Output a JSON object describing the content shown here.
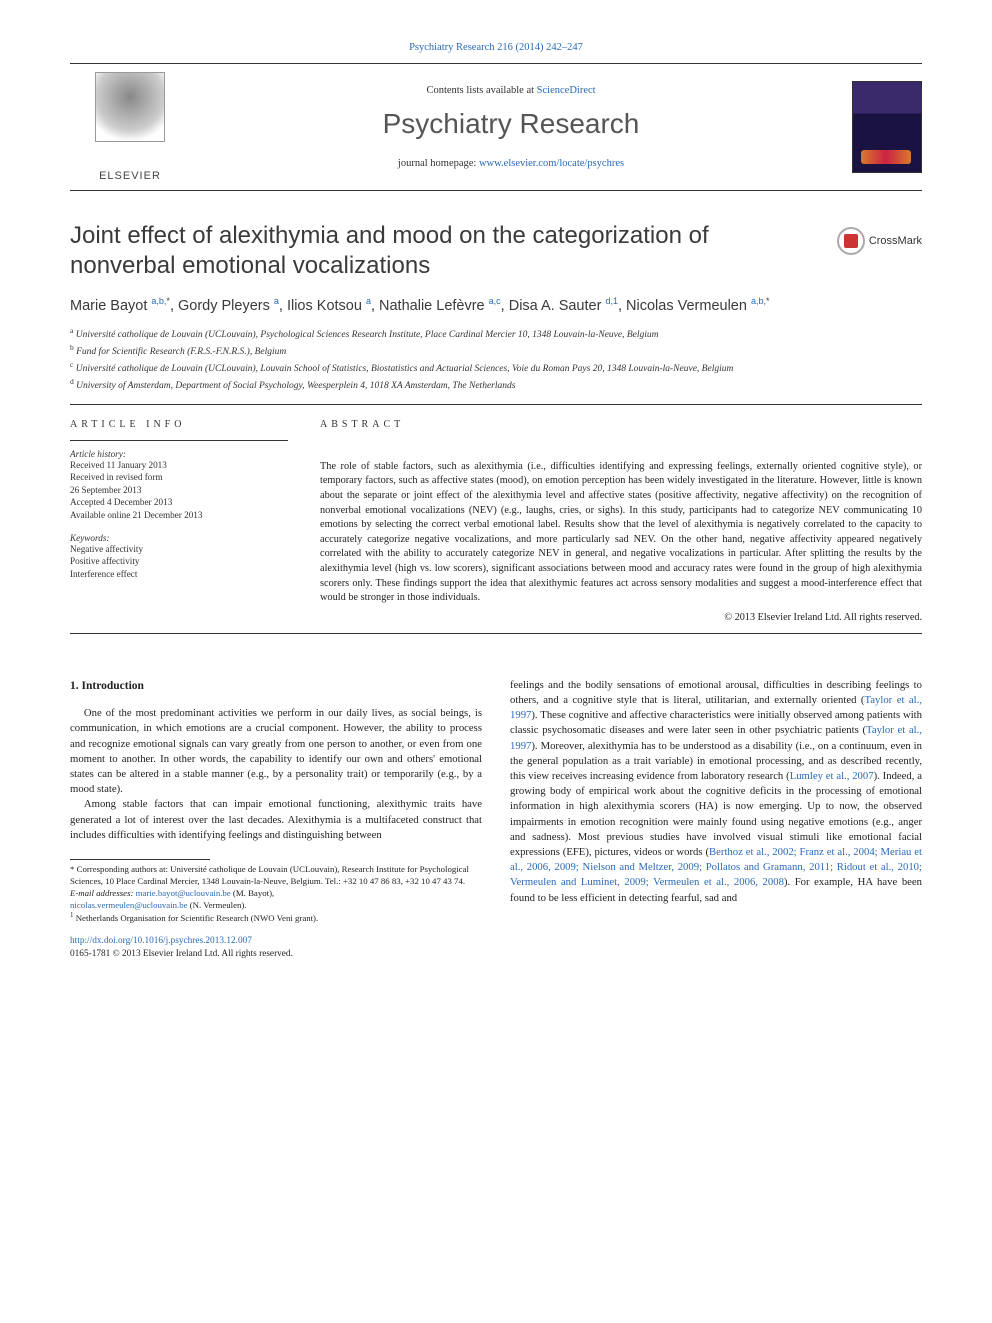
{
  "header_ref": {
    "text": "Psychiatry Research 216 (2014) 242–247",
    "color": "#2a6ab5"
  },
  "masthead": {
    "contents_prefix": "Contents lists available at ",
    "contents_link": "ScienceDirect",
    "journal_name": "Psychiatry Research",
    "homepage_prefix": "journal homepage: ",
    "homepage_link": "www.elsevier.com/locate/psychres",
    "publisher_wordmark": "ELSEVIER"
  },
  "crossmark_label": "CrossMark",
  "title": "Joint effect of alexithymia and mood on the categorization of nonverbal emotional vocalizations",
  "authors_html": "Marie Bayot <span class='sup'>a,b,</span><span class='supstar'>*</span>, Gordy Pleyers <span class='sup'>a</span>, Ilios Kotsou <span class='sup'>a</span>, Nathalie Lefèvre <span class='sup'>a,c</span>, Disa A. Sauter <span class='sup'>d,1</span>, Nicolas Vermeulen <span class='sup'>a,b,</span><span class='supstar'>*</span>",
  "affiliations": [
    {
      "sup": "a",
      "text": "Université catholique de Louvain (UCLouvain), Psychological Sciences Research Institute, Place Cardinal Mercier 10, 1348 Louvain-la-Neuve, Belgium"
    },
    {
      "sup": "b",
      "text": "Fund for Scientific Research (F.R.S.-F.N.R.S.), Belgium"
    },
    {
      "sup": "c",
      "text": "Université catholique de Louvain (UCLouvain), Louvain School of Statistics, Biostatistics and Actuarial Sciences, Voie du Roman Pays 20, 1348 Louvain-la-Neuve, Belgium"
    },
    {
      "sup": "d",
      "text": "University of Amsterdam, Department of Social Psychology, Weesperplein 4, 1018 XA Amsterdam, The Netherlands"
    }
  ],
  "article_info": {
    "heading": "ARTICLE INFO",
    "history_label": "Article history:",
    "history_lines": [
      "Received 11 January 2013",
      "Received in revised form",
      "26 September 2013",
      "Accepted 4 December 2013",
      "Available online 21 December 2013"
    ],
    "keywords_label": "Keywords:",
    "keywords": [
      "Negative affectivity",
      "Positive affectivity",
      "Interference effect"
    ]
  },
  "abstract": {
    "heading": "ABSTRACT",
    "text": "The role of stable factors, such as alexithymia (i.e., difficulties identifying and expressing feelings, externally oriented cognitive style), or temporary factors, such as affective states (mood), on emotion perception has been widely investigated in the literature. However, little is known about the separate or joint effect of the alexithymia level and affective states (positive affectivity, negative affectivity) on the recognition of nonverbal emotional vocalizations (NEV) (e.g., laughs, cries, or sighs). In this study, participants had to categorize NEV communicating 10 emotions by selecting the correct verbal emotional label. Results show that the level of alexithymia is negatively correlated to the capacity to accurately categorize negative vocalizations, and more particularly sad NEV. On the other hand, negative affectivity appeared negatively correlated with the ability to accurately categorize NEV in general, and negative vocalizations in particular. After splitting the results by the alexithymia level (high vs. low scorers), significant associations between mood and accuracy rates were found in the group of high alexithymia scorers only. These findings support the idea that alexithymic features act across sensory modalities and suggest a mood-interference effect that would be stronger in those individuals.",
    "copyright": "© 2013 Elsevier Ireland Ltd. All rights reserved."
  },
  "body": {
    "section_number": "1.",
    "section_title": "Introduction",
    "para1": "One of the most predominant activities we perform in our daily lives, as social beings, is communication, in which emotions are a crucial component. However, the ability to process and recognize emotional signals can vary greatly from one person to another, or even from one moment to another. In other words, the capability to identify our own and others' emotional states can be altered in a stable manner (e.g., by a personality trait) or temporarily (e.g., by a mood state).",
    "para2": "Among stable factors that can impair emotional functioning, alexithymic traits have generated a lot of interest over the last decades. Alexithymia is a multifaceted construct that includes difficulties with identifying feelings and distinguishing between",
    "para3_pre": "feelings and the bodily sensations of emotional arousal, difficulties in describing feelings to others, and a cognitive style that is literal, utilitarian, and externally oriented (",
    "cite1": "Taylor et al., 1997",
    "para3_mid1": "). These cognitive and affective characteristics were initially observed among patients with classic psychosomatic diseases and were later seen in other psychiatric patients (",
    "cite2": "Taylor et al., 1997",
    "para3_mid2": "). Moreover, alexithymia has to be understood as a disability (i.e., on a continuum, even in the general population as a trait variable) in emotional processing, and as described recently, this view receives increasing evidence from laboratory research (",
    "cite3": "Lumley et al., 2007",
    "para3_mid3": "). Indeed, a growing body of empirical work about the cognitive deficits in the processing of emotional information in high alexithymia scorers (HA) is now emerging. Up to now, the observed impairments in emotion recognition were mainly found using negative emotions (e.g., anger and sadness). Most previous studies have involved visual stimuli like emotional facial expressions (EFE), pictures, videos or words (",
    "cite4": "Berthoz et al., 2002; Franz et al., 2004; Meriau et al., 2006, 2009; Nielson and Meltzer, 2009; Pollatos and Gramann, 2011; Ridout et al., 2010; Vermeulen and Luminet, 2009; Vermeulen et al., 2006, 2008",
    "para3_post": "). For example, HA have been found to be less efficient in detecting fearful, sad and"
  },
  "footnotes": {
    "corr_prefix": "* Corresponding authors at: Université catholique de Louvain (UCLouvain), Research Institute for Psychological Sciences, 10 Place Cardinal Mercier, 1348 Louvain-la-Neuve, Belgium. Tel.: +32 10 47 86 83, +32 10 47 43 74.",
    "email_label": "E-mail addresses:",
    "email1": "marie.bayot@uclouvain.be",
    "email1_who": " (M. Bayot),",
    "email2": "nicolas.vermeulen@uclouvain.be",
    "email2_who": " (N. Vermeulen).",
    "note1_sup": "1",
    "note1": " Netherlands Organisation for Scientific Research (NWO Veni grant)."
  },
  "doi": {
    "url": "http://dx.doi.org/10.1016/j.psychres.2013.12.007",
    "issn_line": "0165-1781 © 2013 Elsevier Ireland Ltd. All rights reserved."
  },
  "colors": {
    "link": "#2a6ab5",
    "text": "#1a1a1a",
    "bg": "#ffffff"
  }
}
